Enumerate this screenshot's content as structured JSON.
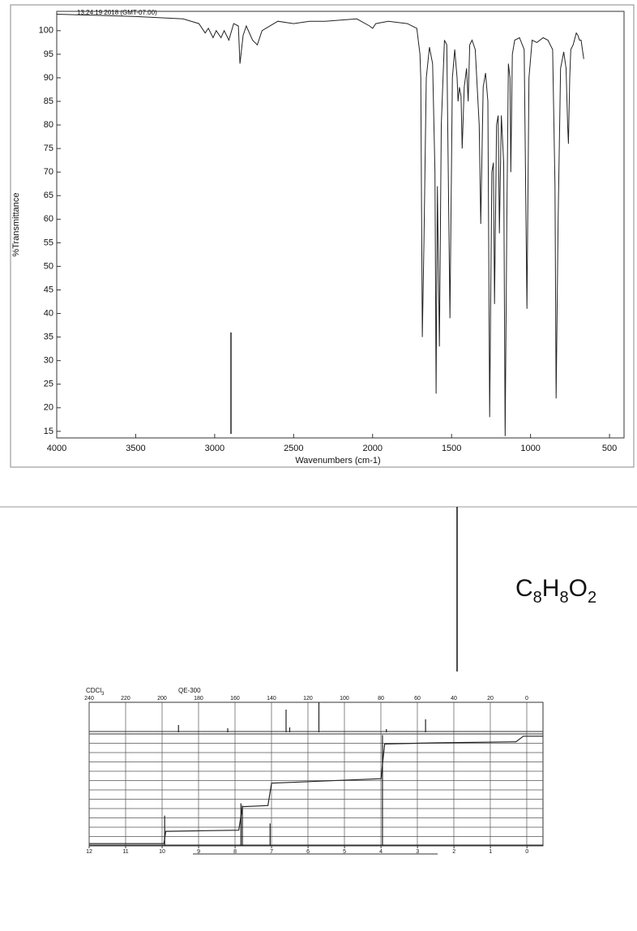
{
  "timestamp": "13:24:19 2018 (GMT-07:00)",
  "formula": [
    "C",
    "8",
    "H",
    "8",
    "O",
    "2"
  ],
  "chart_data": [
    {
      "type": "line",
      "x_label": "Wavenumbers (cm-1)",
      "y_label": "%Transmittance",
      "xlim": [
        4000,
        408
      ],
      "ylim": [
        13.6,
        104.1
      ],
      "xticks": [
        4000,
        3500,
        3000,
        2500,
        2000,
        1500,
        1000,
        500
      ],
      "yticks": [
        15,
        20,
        25,
        30,
        35,
        40,
        45,
        50,
        55,
        60,
        65,
        70,
        75,
        80,
        85,
        90,
        95,
        100
      ],
      "color": "#222222",
      "x": [
        4000,
        3800,
        3500,
        3200,
        3100,
        3060,
        3040,
        3010,
        2990,
        2960,
        2940,
        2910,
        2880,
        2850,
        2840,
        2820,
        2800,
        2760,
        2730,
        2700,
        2600,
        2500,
        2400,
        2300,
        2100,
        2020,
        2000,
        1980,
        1900,
        1780,
        1720,
        1700,
        1695,
        1685,
        1675,
        1660,
        1640,
        1620,
        1605,
        1598,
        1590,
        1577,
        1565,
        1545,
        1530,
        1510,
        1495,
        1480,
        1465,
        1459,
        1450,
        1440,
        1433,
        1420,
        1405,
        1395,
        1385,
        1370,
        1350,
        1325,
        1315,
        1300,
        1285,
        1270,
        1259,
        1245,
        1235,
        1228,
        1215,
        1205,
        1197,
        1185,
        1170,
        1161,
        1150,
        1140,
        1130,
        1125,
        1115,
        1100,
        1070,
        1040,
        1023,
        1010,
        990,
        960,
        920,
        890,
        860,
        845,
        838,
        825,
        810,
        790,
        775,
        765,
        760,
        752,
        745,
        730,
        710,
        700,
        690,
        680,
        663
      ],
      "values": [
        103.5,
        103.3,
        103,
        102.5,
        101.5,
        99.5,
        100.5,
        98.5,
        100,
        98.5,
        100,
        98,
        101.5,
        101,
        93,
        99,
        101,
        98,
        97,
        100,
        102,
        101.5,
        102,
        102,
        102.5,
        101,
        100.5,
        101.5,
        102,
        101.5,
        100.5,
        95,
        90,
        35,
        55,
        90,
        96.5,
        93,
        70,
        23,
        67,
        33,
        80,
        98,
        97,
        39,
        90,
        96,
        90,
        85,
        88,
        86,
        75,
        88,
        92,
        85,
        97,
        98,
        96,
        80,
        59,
        88,
        91,
        85,
        18,
        70,
        72,
        42,
        80,
        82,
        57,
        82,
        72,
        14,
        60,
        93,
        90,
        70,
        95,
        98,
        98.5,
        96,
        41,
        90,
        98,
        97.5,
        98.5,
        98,
        96,
        67,
        22,
        60,
        92,
        95.5,
        92,
        80,
        76,
        90,
        96,
        97,
        99.5,
        99,
        98,
        98,
        94
      ]
    },
    {
      "type": "stick",
      "solvent": [
        "CDCl",
        "3"
      ],
      "instrument": "QE-300",
      "xlim": [
        240,
        -8.9
      ],
      "ylim": [
        0,
        41
      ],
      "xticks": [
        240,
        220,
        200,
        180,
        160,
        140,
        120,
        100,
        80,
        60,
        40,
        20,
        0
      ],
      "color": "#222222",
      "x": [
        191,
        164,
        132,
        130,
        114,
        77,
        55.5
      ],
      "values": [
        9,
        5,
        28,
        6,
        37,
        4,
        16
      ]
    },
    {
      "type": "stick",
      "xlim": [
        12,
        -0.44
      ],
      "ylim": [
        0,
        100
      ],
      "xticks": [
        12,
        11,
        10,
        9,
        8,
        7,
        6,
        5,
        4,
        3,
        2,
        1,
        0
      ],
      "color": "#222222",
      "x": [
        9.93,
        7.84,
        7.8,
        7.04,
        3.96
      ],
      "values": [
        27,
        38,
        36,
        20,
        99
      ],
      "integral_x": [
        12,
        9.95,
        9.9,
        7.9,
        7.8,
        7.1,
        7.0,
        4.0,
        3.9,
        2.5,
        0.3,
        0.1,
        -0.44
      ],
      "integral_values": [
        2,
        2,
        13,
        14,
        35,
        36,
        56,
        60,
        91,
        92,
        93,
        98,
        98
      ]
    }
  ]
}
